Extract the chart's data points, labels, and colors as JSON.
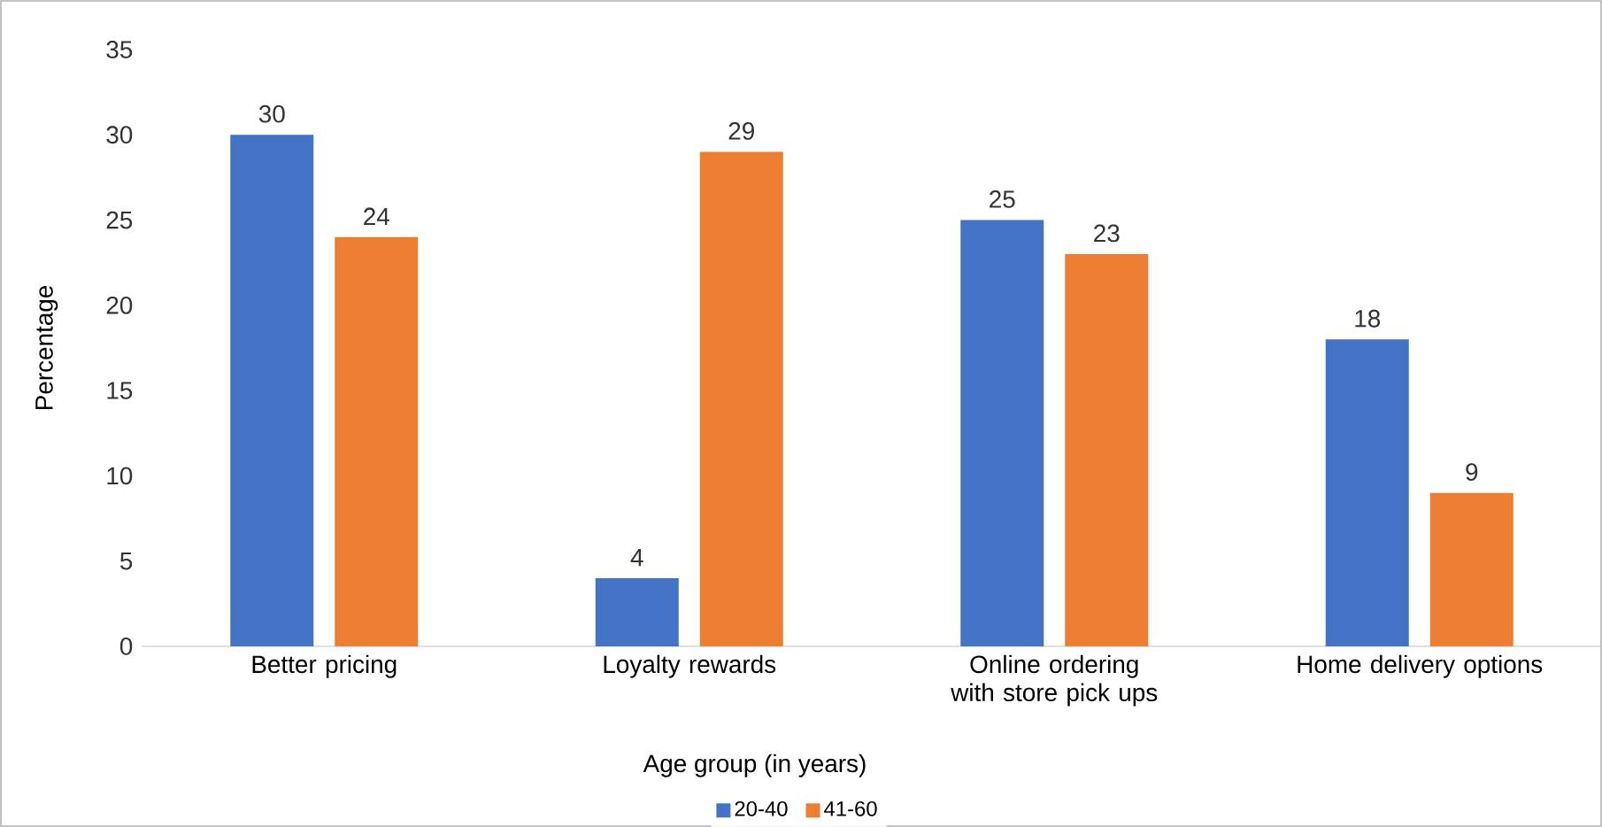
{
  "chart_data": {
    "type": "bar",
    "xlabel": "Age group (in years)",
    "ylabel": "Percentage",
    "categories": [
      "Better pricing",
      "Loyalty rewards",
      "Online ordering with store pick ups",
      "Home delivery options"
    ],
    "series": [
      {
        "name": "20-40",
        "color": "#4472c4",
        "values": [
          30,
          4,
          25,
          18
        ]
      },
      {
        "name": "41-60",
        "color": "#ed7d31",
        "values": [
          24,
          29,
          23,
          9
        ]
      }
    ],
    "ylim": [
      0,
      35
    ],
    "yticks": [
      0,
      5,
      10,
      15,
      20,
      25,
      30,
      35
    ],
    "data_labels": true,
    "legend": "bottom"
  }
}
